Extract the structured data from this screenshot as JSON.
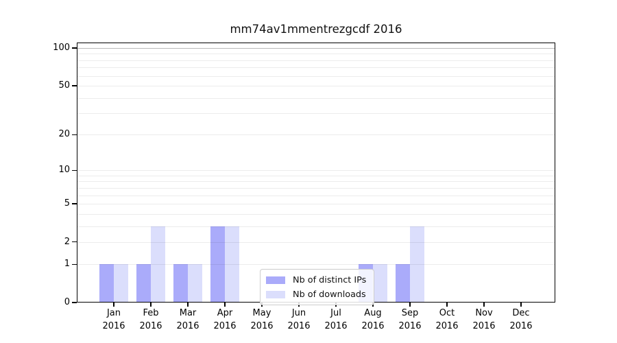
{
  "title": "mm74av1mmentrezgcdf 2016",
  "colors": {
    "ips": "#aaabfa",
    "downloads": "#dbdefc",
    "grid_minor": "rgba(0,0,0,0.075)",
    "grid_emphasis": "rgba(0,0,0,0.28)",
    "axis": "#000000",
    "legend_border": "#cccccc"
  },
  "legend": {
    "items": [
      {
        "series": "ips",
        "label": "Nb of distinct IPs"
      },
      {
        "series": "downloads",
        "label": "Nb of downloads"
      }
    ]
  },
  "chart_data": {
    "type": "bar",
    "title": "mm74av1mmentrezgcdf 2016",
    "categories": [
      {
        "month": "Jan",
        "year": "2016"
      },
      {
        "month": "Feb",
        "year": "2016"
      },
      {
        "month": "Mar",
        "year": "2016"
      },
      {
        "month": "Apr",
        "year": "2016"
      },
      {
        "month": "May",
        "year": "2016"
      },
      {
        "month": "Jun",
        "year": "2016"
      },
      {
        "month": "Jul",
        "year": "2016"
      },
      {
        "month": "Aug",
        "year": "2016"
      },
      {
        "month": "Sep",
        "year": "2016"
      },
      {
        "month": "Oct",
        "year": "2016"
      },
      {
        "month": "Nov",
        "year": "2016"
      },
      {
        "month": "Dec",
        "year": "2016"
      }
    ],
    "series": [
      {
        "name": "Nb of distinct IPs",
        "key": "ips",
        "color": "#aaabfa",
        "values": [
          1,
          1,
          1,
          3,
          0,
          0,
          0,
          1,
          1,
          0,
          0,
          0
        ]
      },
      {
        "name": "Nb of downloads",
        "key": "downloads",
        "color": "#dbdefc",
        "values": [
          1,
          3,
          1,
          3,
          0,
          0,
          0,
          1,
          3,
          0,
          0,
          0
        ]
      }
    ],
    "y_scale": "log1p",
    "ylim": [
      0,
      100
    ],
    "y_ticks": [
      0,
      1,
      2,
      5,
      10,
      20,
      50,
      100
    ],
    "grid_values": [
      1,
      2,
      3,
      4,
      5,
      6,
      7,
      8,
      9,
      10,
      20,
      30,
      40,
      50,
      60,
      70,
      80,
      90,
      100
    ],
    "grid_emphasis_value": 100,
    "grid": true,
    "legend_position": "inside-bottom-center"
  }
}
